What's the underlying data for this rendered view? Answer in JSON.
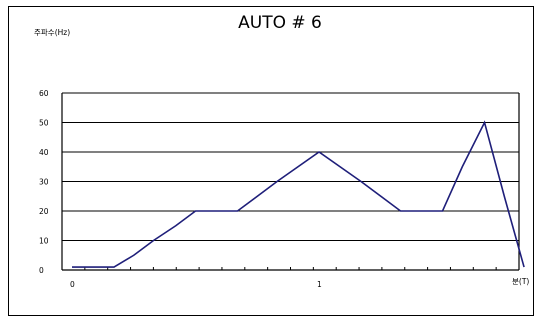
{
  "chart_data": {
    "type": "line",
    "title": "AUTO # 6",
    "ylabel": "주파수(Hz)",
    "xlabel": "분(T)",
    "ylim": [
      0,
      60
    ],
    "yticks": [
      "0",
      "10",
      "20",
      "30",
      "40",
      "50",
      "60"
    ],
    "xlim": [
      0,
      1.85
    ],
    "xticks": [
      {
        "value": 0,
        "label": "0"
      },
      {
        "value": 1,
        "label": "1"
      }
    ],
    "grid": true,
    "series": [
      {
        "color": "#1f1f7a",
        "x": [
          0,
          0.17,
          0.25,
          0.33,
          0.42,
          0.5,
          0.67,
          0.83,
          1.0,
          1.17,
          1.33,
          1.5,
          1.58,
          1.67,
          1.75,
          1.83
        ],
        "y": [
          1,
          1,
          5,
          10,
          15,
          20,
          20,
          30,
          40,
          30,
          20,
          20,
          35,
          50,
          25,
          1
        ]
      }
    ]
  }
}
